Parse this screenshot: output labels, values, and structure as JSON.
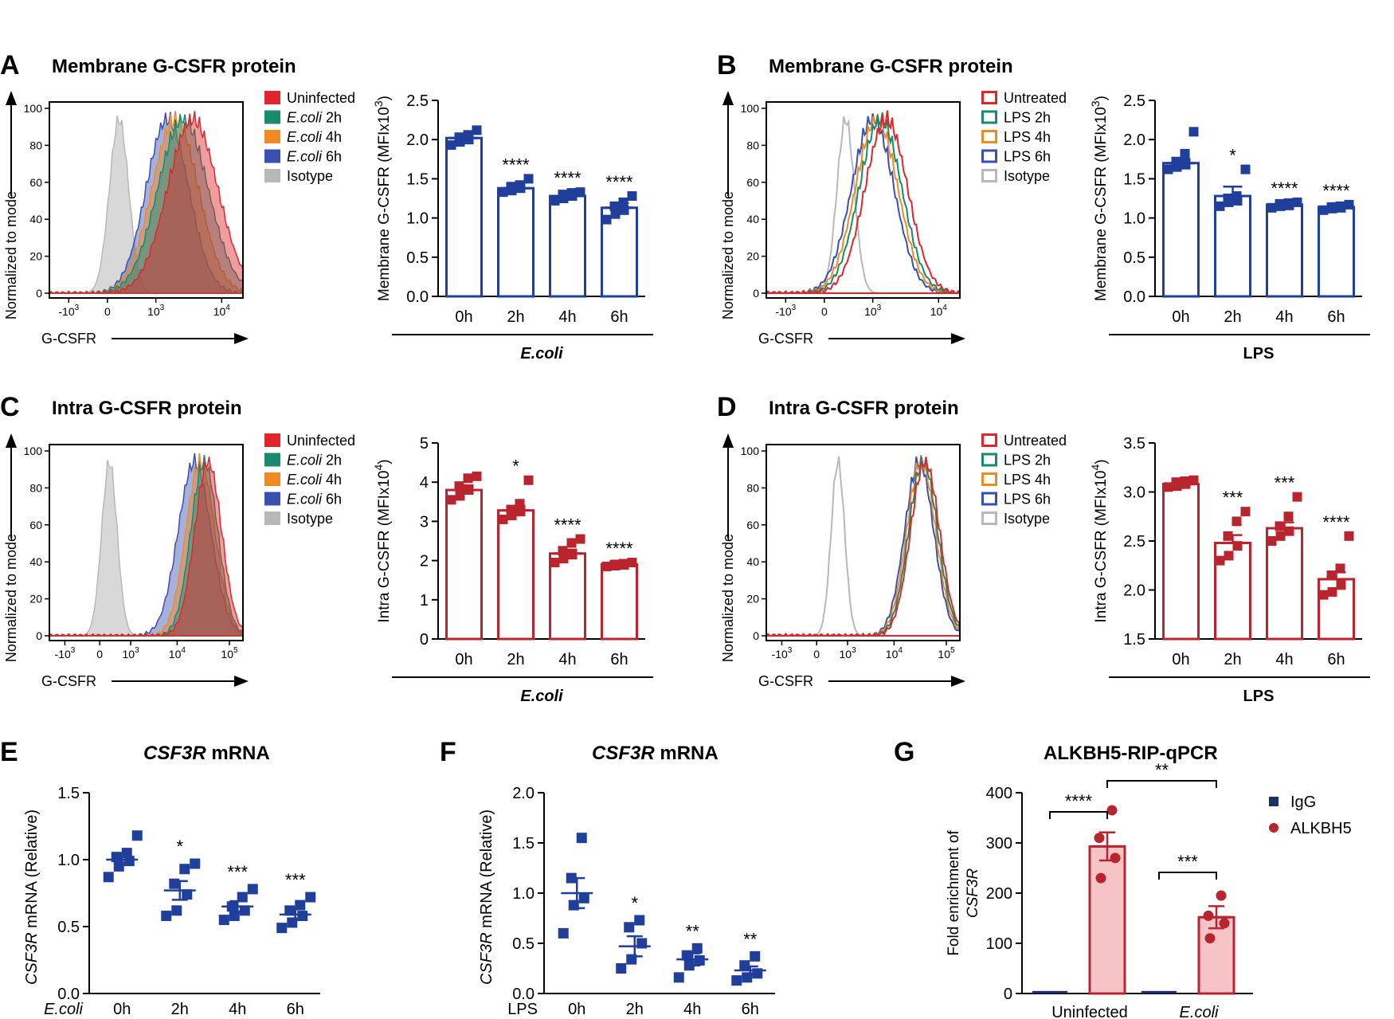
{
  "panels": {
    "A": {
      "letter": "A",
      "title": "Membrane G-CSFR protein",
      "legend": [
        "Uninfected",
        "E.coli 2h",
        "E.coli 4h",
        "E.coli 6h",
        "Isotype"
      ]
    },
    "B": {
      "letter": "B",
      "title": "Membrane G-CSFR protein",
      "legend": [
        "Untreated",
        "LPS 2h",
        "LPS 4h",
        "LPS 6h",
        "Isotype"
      ]
    },
    "C": {
      "letter": "C",
      "title": "Intra G-CSFR protein",
      "legend": [
        "Uninfected",
        "E.coli 2h",
        "E.coli 4h",
        "E.coli 6h",
        "Isotype"
      ]
    },
    "D": {
      "letter": "D",
      "title": "Intra G-CSFR protein",
      "legend": [
        "Untreated",
        "LPS 2h",
        "LPS 4h",
        "LPS 6h",
        "Isotype"
      ]
    },
    "E": {
      "letter": "E",
      "title_italic": "CSF3R",
      "title_rest": " mRNA"
    },
    "F": {
      "letter": "F",
      "title_italic": "CSF3R",
      "title_rest": " mRNA"
    },
    "G": {
      "letter": "G",
      "title": "ALKBH5-RIP-qPCR"
    }
  },
  "colors": {
    "uninfected": "#e0262c",
    "ecoli2h": "#1a8a6e",
    "ecoli4h": "#f08a25",
    "ecoli6h": "#3a4fb0",
    "isotype": "#b8b8b8",
    "blue": "#1f3f9a",
    "red": "#b9252f",
    "pink": "#f6c3c6",
    "navy": "#1b2d6b"
  },
  "histogram_axis": {
    "ylabel": "Normalized to mode",
    "xlabel": "G-CSFR",
    "yticks": [
      "0",
      "20",
      "40",
      "60",
      "80",
      "100"
    ]
  },
  "chart_data": [
    {
      "id": "A_bar",
      "type": "bar",
      "group_label": "E.coli",
      "ylabel": "Membrane G-CSFR (MFIx10^3)",
      "ylabel_base": "Membrane G-CSFR (MFIx10",
      "ylabel_exp": "3",
      "ylabel_close": ")",
      "categories": [
        "0h",
        "2h",
        "4h",
        "6h"
      ],
      "means": [
        2.02,
        1.38,
        1.28,
        1.13
      ],
      "sem": [
        0.04,
        0.04,
        0.03,
        0.06
      ],
      "sig": [
        "",
        "****",
        "****",
        "****"
      ],
      "ylim": [
        0,
        2.5
      ],
      "yticks": [
        "0.0",
        "0.5",
        "1.0",
        "1.5",
        "2.0",
        "2.5"
      ],
      "points": [
        [
          1.93,
          1.97,
          2.0,
          2.03,
          2.06,
          2.12
        ],
        [
          1.33,
          1.35,
          1.38,
          1.4,
          1.42,
          1.5
        ],
        [
          1.22,
          1.25,
          1.28,
          1.3,
          1.32,
          1.33
        ],
        [
          0.98,
          1.05,
          1.1,
          1.15,
          1.2,
          1.28
        ]
      ]
    },
    {
      "id": "B_bar",
      "type": "bar",
      "group_label": "LPS",
      "ylabel": "Membrane G-CSFR (MFIx10^3)",
      "ylabel_base": "Membrane G-CSFR (MFIx10",
      "ylabel_exp": "3",
      "ylabel_close": ")",
      "categories": [
        "0h",
        "2h",
        "4h",
        "6h"
      ],
      "means": [
        1.7,
        1.28,
        1.17,
        1.14
      ],
      "sem": [
        0.05,
        0.12,
        0.02,
        0.02
      ],
      "sig": [
        "",
        "*",
        "****",
        "****"
      ],
      "ylim": [
        0,
        2.5
      ],
      "yticks": [
        "0.0",
        "0.5",
        "1.0",
        "1.5",
        "2.0",
        "2.5"
      ],
      "points": [
        [
          1.62,
          1.65,
          1.68,
          1.72,
          1.82,
          2.1
        ],
        [
          1.15,
          1.2,
          1.22,
          1.25,
          1.28,
          1.62
        ],
        [
          1.13,
          1.15,
          1.16,
          1.18,
          1.19,
          1.2
        ],
        [
          1.1,
          1.12,
          1.13,
          1.14,
          1.15,
          1.17
        ]
      ]
    },
    {
      "id": "C_bar",
      "type": "bar",
      "group_label": "E.coli",
      "ylabel": "Intra G-CSFR (MFIx10^4)",
      "ylabel_base": "Intra G-CSFR (MFIx10",
      "ylabel_exp": "4",
      "ylabel_close": ")",
      "categories": [
        "0h",
        "2h",
        "4h",
        "6h"
      ],
      "means": [
        3.8,
        3.28,
        2.18,
        1.9
      ],
      "sem": [
        0.12,
        0.12,
        0.1,
        0.03
      ],
      "sig": [
        "",
        "*",
        "****",
        "****"
      ],
      "ylim": [
        0,
        5
      ],
      "yticks": [
        "0",
        "1",
        "2",
        "3",
        "4",
        "5"
      ],
      "points": [
        [
          3.55,
          3.65,
          3.8,
          3.9,
          4.1,
          4.15
        ],
        [
          3.05,
          3.15,
          3.25,
          3.3,
          3.45,
          4.05
        ],
        [
          1.95,
          2.05,
          2.15,
          2.25,
          2.45,
          2.55
        ],
        [
          1.85,
          1.87,
          1.89,
          1.9,
          1.92,
          1.95
        ]
      ]
    },
    {
      "id": "D_bar",
      "type": "bar",
      "group_label": "LPS",
      "ylabel": "Intra G-CSFR (MFIx10^4)",
      "ylabel_base": "Intra G-CSFR (MFIx10",
      "ylabel_exp": "4",
      "ylabel_close": ")",
      "categories": [
        "0h",
        "2h",
        "4h",
        "6h"
      ],
      "means": [
        3.08,
        2.48,
        2.63,
        2.11
      ],
      "sem": [
        0.02,
        0.08,
        0.06,
        0.07
      ],
      "sig": [
        "",
        "***",
        "***",
        "****"
      ],
      "ylim": [
        1.5,
        3.5
      ],
      "yticks": [
        "1.5",
        "2.0",
        "2.5",
        "3.0",
        "3.5"
      ],
      "points": [
        [
          3.05,
          3.06,
          3.08,
          3.1,
          3.11,
          3.12
        ],
        [
          2.3,
          2.35,
          2.45,
          2.55,
          2.7,
          2.8
        ],
        [
          2.5,
          2.55,
          2.6,
          2.65,
          2.75,
          2.95
        ],
        [
          1.95,
          1.98,
          2.05,
          2.15,
          2.22,
          2.55
        ]
      ]
    },
    {
      "id": "E_scatter",
      "type": "scatter",
      "group_label": "E.coli",
      "ylabel": "CSF3R mRNA (Relative)",
      "categories": [
        "0h",
        "2h",
        "4h",
        "6h"
      ],
      "means": [
        1.0,
        0.77,
        0.65,
        0.59
      ],
      "sem": [
        0.04,
        0.07,
        0.04,
        0.04
      ],
      "sig": [
        "",
        "*",
        "***",
        "***"
      ],
      "ylim": [
        0,
        1.5
      ],
      "yticks": [
        "0.0",
        "0.5",
        "1.0",
        "1.5"
      ],
      "points": [
        [
          0.87,
          0.95,
          0.99,
          1.02,
          1.05,
          1.18
        ],
        [
          0.58,
          0.62,
          0.74,
          0.82,
          0.93,
          0.97
        ],
        [
          0.55,
          0.58,
          0.62,
          0.65,
          0.72,
          0.78
        ],
        [
          0.49,
          0.53,
          0.58,
          0.62,
          0.66,
          0.72
        ]
      ]
    },
    {
      "id": "F_scatter",
      "type": "scatter",
      "group_label": "LPS",
      "ylabel": "CSF3R mRNA (Relative)",
      "categories": [
        "0h",
        "2h",
        "4h",
        "6h"
      ],
      "means": [
        1.0,
        0.47,
        0.34,
        0.23
      ],
      "sem": [
        0.15,
        0.1,
        0.06,
        0.04
      ],
      "sig": [
        "",
        "*",
        "**",
        "**"
      ],
      "ylim": [
        0,
        2.0
      ],
      "yticks": [
        "0.0",
        "0.5",
        "1.0",
        "1.5",
        "2.0"
      ],
      "points": [
        [
          0.6,
          0.88,
          0.95,
          1.15,
          1.55
        ],
        [
          0.25,
          0.34,
          0.5,
          0.66,
          0.73
        ],
        [
          0.16,
          0.28,
          0.33,
          0.38,
          0.45
        ],
        [
          0.13,
          0.16,
          0.2,
          0.28,
          0.37
        ]
      ]
    },
    {
      "id": "G_bar",
      "type": "bar",
      "ylabel_line1": "Fold enrichment of",
      "ylabel_line2": "CSF3R",
      "categories": [
        "Uninfected",
        "E.coli"
      ],
      "series": [
        {
          "name": "IgG",
          "values": [
            5,
            5
          ]
        },
        {
          "name": "ALKBH5",
          "values": [
            293,
            152
          ],
          "sem": [
            28,
            22
          ],
          "points": [
            [
              230,
              270,
              310,
              365
            ],
            [
              110,
              140,
              155,
              195
            ]
          ]
        }
      ],
      "ylim": [
        0,
        400
      ],
      "yticks": [
        "0",
        "100",
        "200",
        "300",
        "400"
      ],
      "sig": [
        {
          "label": "****"
        },
        {
          "label": "***"
        },
        {
          "label": "**"
        }
      ]
    }
  ]
}
